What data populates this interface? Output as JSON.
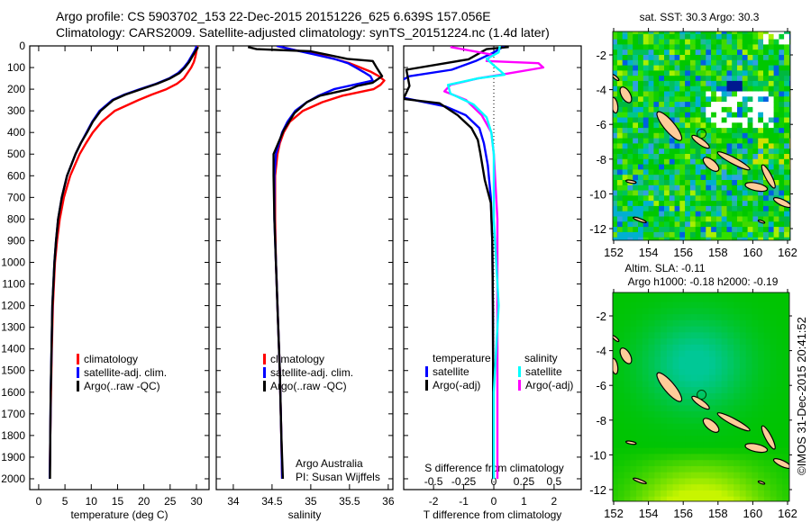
{
  "title": {
    "line1": "Argo profile: CS 5903702_153 22-Dec-2015 20151226_625 6.639S 157.056E",
    "line2": "Climatology: CARS2009. Satellite-adjusted climatology: synTS_20151224.nc (1.4d later)"
  },
  "credit": "©IMOS 31-Dec-2015 20:41:52",
  "chart_data": [
    {
      "name": "temperature",
      "type": "line",
      "xlabel": "temperature (deg C)",
      "ylabel": "depth",
      "xlim": [
        -1.7,
        32.4
      ],
      "ylim": [
        2050,
        0
      ],
      "xticks": [
        0,
        5,
        10,
        15,
        20,
        25,
        30
      ],
      "xtick_labels": [
        "0",
        "5",
        "10",
        "15",
        "20",
        "25",
        "30"
      ],
      "yticks": [
        0,
        100,
        200,
        300,
        400,
        500,
        600,
        700,
        800,
        900,
        1000,
        1100,
        1200,
        1300,
        1400,
        1500,
        1600,
        1700,
        1800,
        1900,
        2000
      ],
      "ytick_labels": [
        "0",
        "100",
        "200",
        "300",
        "400",
        "500",
        "600",
        "700",
        "800",
        "900",
        "1000",
        "1100",
        "1200",
        "1300",
        "1400",
        "1500",
        "1600",
        "1700",
        "1800",
        "1900",
        "2000"
      ],
      "legend": [
        "climatology",
        "satellite-adj. clim.",
        "Argo(..raw -QC)"
      ],
      "series": [
        {
          "name": "climatology",
          "color": "#ff0000",
          "depth": [
            0,
            25,
            50,
            75,
            100,
            125,
            150,
            175,
            200,
            225,
            250,
            300,
            350,
            400,
            450,
            500,
            600,
            700,
            800,
            900,
            1000,
            1200,
            1400,
            1600,
            1800,
            2000
          ],
          "values": [
            30.2,
            30.0,
            29.8,
            29.5,
            29.0,
            28.3,
            27.6,
            26.3,
            24.3,
            21.5,
            19.0,
            14.5,
            12.0,
            10.3,
            9.0,
            7.8,
            6.0,
            4.8,
            4.0,
            3.5,
            3.1,
            2.7,
            2.5,
            2.35,
            2.2,
            2.1
          ]
        },
        {
          "name": "satellite-adj. clim.",
          "color": "#0000ff",
          "depth": [
            0,
            10,
            25,
            50,
            75,
            100,
            125,
            150,
            175,
            200,
            225,
            250,
            300,
            350,
            400,
            450,
            500,
            600,
            700,
            800,
            900,
            1000,
            1200,
            1400,
            1600,
            1800,
            2000
          ],
          "values": [
            30.0,
            29.9,
            29.6,
            29.0,
            28.4,
            27.6,
            26.5,
            24.8,
            22.3,
            19.2,
            16.3,
            14.0,
            11.6,
            10.2,
            9.1,
            8.0,
            7.0,
            5.4,
            4.4,
            3.7,
            3.3,
            3.0,
            2.6,
            2.45,
            2.3,
            2.2,
            2.1
          ]
        },
        {
          "name": "Argo(..raw -QC)",
          "color": "#000000",
          "depth": [
            5,
            10,
            25,
            50,
            75,
            100,
            125,
            150,
            175,
            200,
            225,
            250,
            300,
            350,
            400,
            450,
            500,
            600,
            700,
            800,
            900,
            1000,
            1200,
            1400,
            1600,
            1800,
            2000
          ],
          "values": [
            30.3,
            30.2,
            29.8,
            29.2,
            28.6,
            27.8,
            26.8,
            25.0,
            22.5,
            19.5,
            16.5,
            14.2,
            11.8,
            10.3,
            9.2,
            8.0,
            7.0,
            5.4,
            4.4,
            3.7,
            3.3,
            3.0,
            2.6,
            2.45,
            2.3,
            2.2,
            2.15
          ]
        }
      ]
    },
    {
      "name": "salinity",
      "type": "line",
      "xlabel": "salinity",
      "ylabel": "depth",
      "xlim": [
        33.78,
        36.06
      ],
      "ylim": [
        2050,
        0
      ],
      "xticks": [
        34,
        34.5,
        35,
        35.5,
        36
      ],
      "xtick_labels": [
        "34",
        "34.5",
        "35",
        "35.5",
        "36"
      ],
      "yticks": [
        0,
        100,
        200,
        300,
        400,
        500,
        600,
        700,
        800,
        900,
        1000,
        1100,
        1200,
        1300,
        1400,
        1500,
        1600,
        1700,
        1800,
        1900,
        2000
      ],
      "legend": [
        "climatology",
        "satellite-adj. clim.",
        "Argo(..raw -QC)"
      ],
      "annotation": [
        "Argo Australia",
        "PI: Susan Wijffels"
      ],
      "series": [
        {
          "name": "climatology",
          "color": "#ff0000",
          "depth": [
            0,
            20,
            40,
            60,
            80,
            100,
            120,
            140,
            160,
            180,
            200,
            230,
            260,
            300,
            350,
            400,
            450,
            500,
            600,
            800,
            1000,
            1200,
            1500,
            1800,
            2000
          ],
          "values": [
            34.56,
            34.8,
            35.1,
            35.3,
            35.5,
            35.64,
            35.78,
            35.88,
            35.95,
            35.9,
            35.81,
            35.41,
            35.15,
            34.9,
            34.73,
            34.65,
            34.6,
            34.57,
            34.54,
            34.54,
            34.55,
            34.57,
            34.6,
            34.62,
            34.63
          ]
        },
        {
          "name": "satellite-adj. clim.",
          "color": "#0000ff",
          "depth": [
            0,
            20,
            40,
            60,
            80,
            100,
            120,
            140,
            160,
            180,
            200,
            230,
            260,
            300,
            350,
            400,
            500,
            600,
            800,
            1000,
            1200,
            1500,
            1800,
            2000
          ],
          "values": [
            34.56,
            34.8,
            35.05,
            35.3,
            35.48,
            35.58,
            35.68,
            35.77,
            35.8,
            35.55,
            35.3,
            35.1,
            34.95,
            34.8,
            34.7,
            34.63,
            34.55,
            34.53,
            34.53,
            34.55,
            34.57,
            34.6,
            34.62,
            34.63
          ]
        },
        {
          "name": "Argo(..raw -QC)",
          "color": "#000000",
          "depth": [
            5,
            15,
            25,
            40,
            60,
            70,
            100,
            140,
            170,
            185,
            200,
            230,
            260,
            310,
            390,
            500,
            600,
            800,
            1000,
            1200,
            1500,
            1800,
            2000
          ],
          "values": [
            34.19,
            34.3,
            35.0,
            35.2,
            35.47,
            35.8,
            35.85,
            35.92,
            35.8,
            35.6,
            35.5,
            35.12,
            34.95,
            34.79,
            34.65,
            34.52,
            34.52,
            34.53,
            34.55,
            34.57,
            34.6,
            34.62,
            34.64
          ]
        }
      ]
    },
    {
      "name": "difference",
      "type": "line",
      "xlabel": "T difference from climatology",
      "x2label": "S difference from climatology",
      "ylabel": "depth",
      "xlim": [
        -2.99,
        2.9
      ],
      "x2lim": [
        -0.7475,
        0.725
      ],
      "ylim": [
        2050,
        0
      ],
      "xticks": [
        -2,
        -1,
        0,
        1,
        2
      ],
      "xtick_labels": [
        "-2",
        "-1",
        "0",
        "1",
        "2"
      ],
      "x2ticks": [
        -0.5,
        -0.25,
        0,
        0.25,
        0.5
      ],
      "x2tick_labels": [
        "-0.5",
        "-0.25",
        "0",
        "0.25",
        "0.5"
      ],
      "yticks": [
        0,
        100,
        200,
        300,
        400,
        500,
        600,
        700,
        800,
        900,
        1000,
        1100,
        1200,
        1300,
        1400,
        1500,
        1600,
        1700,
        1800,
        1900,
        2000
      ],
      "legend_headers": [
        "temperature",
        "salinity"
      ],
      "legend": [
        "satellite",
        "Argo(-adj)",
        "satellite",
        "Argo(-adj)"
      ],
      "series": [
        {
          "name": "T satellite",
          "axis": "T",
          "color": "#0000ff",
          "depth": [
            0,
            30,
            70,
            110,
            140,
            170,
            200,
            240,
            280,
            320,
            380,
            450,
            550,
            700,
            900,
            1200,
            1600,
            2000
          ],
          "values": [
            0.36,
            0.0,
            -0.6,
            -1.4,
            -2.8,
            -3.2,
            -3.2,
            -3.0,
            -1.6,
            -0.93,
            -0.48,
            -0.33,
            -0.2,
            -0.1,
            -0.05,
            -0.03,
            -0.02,
            -0.02
          ]
        },
        {
          "name": "T Argo(-adj)",
          "axis": "T",
          "color": "#000000",
          "depth": [
            5,
            15,
            62,
            110,
            185,
            245,
            265,
            320,
            380,
            435,
            495,
            620,
            725,
            900,
            1200,
            1600,
            2000
          ],
          "values": [
            0.5,
            -0.24,
            -0.84,
            -2.9,
            -2.8,
            -3.0,
            -1.8,
            -1.2,
            -0.74,
            -0.53,
            -0.45,
            -0.3,
            -0.1,
            -0.05,
            -0.03,
            -0.02,
            -0.02
          ]
        },
        {
          "name": "S Argo(-adj)",
          "axis": "S",
          "color": "#ff00ff",
          "depth": [
            5,
            40,
            70,
            80,
            100,
            130,
            150,
            180,
            210,
            250,
            320,
            400,
            500,
            800,
            1200,
            1600,
            2000
          ],
          "values": [
            -0.36,
            -0.02,
            -0.06,
            0.37,
            0.41,
            0.09,
            -0.13,
            -0.36,
            -0.41,
            -0.23,
            -0.1,
            -0.02,
            0.0,
            0.03,
            0.03,
            0.03,
            0.03
          ]
        },
        {
          "name": "S satellite",
          "axis": "S",
          "color": "#00ffff",
          "depth": [
            0,
            30,
            60,
            90,
            133,
            150,
            180,
            220,
            270,
            330,
            400,
            500,
            800,
            1200,
            1600,
            2000
          ],
          "values": [
            0.05,
            0.04,
            -0.06,
            0.0,
            0.09,
            -0.13,
            -0.38,
            -0.36,
            -0.17,
            -0.06,
            -0.02,
            0.0,
            0.0,
            0.04,
            0.0,
            0.0
          ]
        }
      ]
    }
  ],
  "maps": [
    {
      "name": "sst-map",
      "title": [
        "sat. SST: 30.3 Argo: 30.3"
      ],
      "lon_ticks": [
        "152",
        "154",
        "156",
        "158",
        "160",
        "162"
      ],
      "lat_ticks": [
        "-2",
        "-4",
        "-6",
        "-8",
        "-10",
        "-12"
      ]
    },
    {
      "name": "sla-map",
      "title": [
        "Altim. SLA: -0.11",
        "Argo h1000: -0.18 h2000: -0.19"
      ],
      "lon_ticks": [
        "152",
        "154",
        "156",
        "158",
        "160",
        "162"
      ],
      "lat_ticks": [
        "-2",
        "-4",
        "-6",
        "-8",
        "-10",
        "-12"
      ]
    }
  ],
  "argo_position": {
    "lat": -6.639,
    "lon": 157.056
  },
  "colors": {
    "land": "#ffcc99",
    "climatology": "#ff0000",
    "satellite": "#0000ff",
    "argo": "#000000",
    "s_argo": "#ff00ff",
    "s_sat": "#00ffff"
  }
}
